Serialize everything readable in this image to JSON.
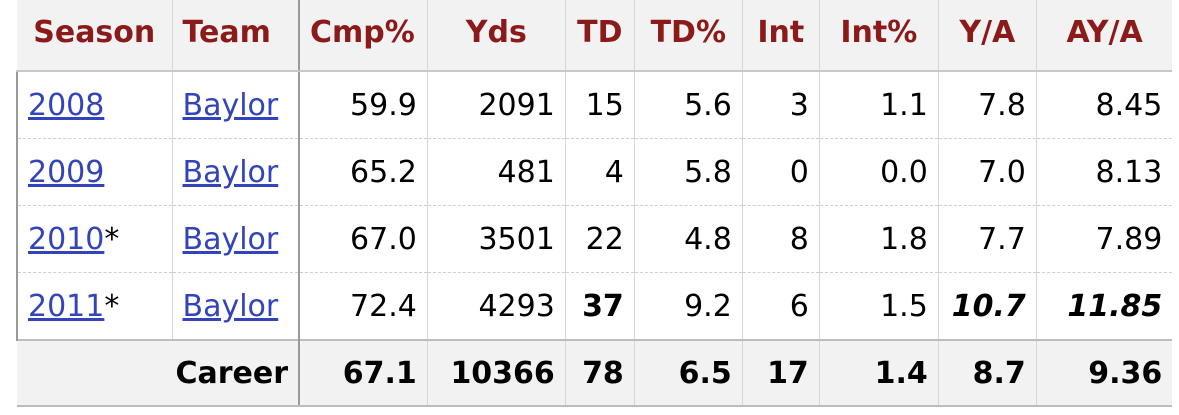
{
  "columns": [
    "Season",
    "Team",
    "Cmp%",
    "Yds",
    "TD",
    "TD%",
    "Int",
    "Int%",
    "Y/A",
    "AY/A"
  ],
  "rows": [
    {
      "season": "2008",
      "marker": "",
      "team": "Baylor",
      "cmp_pct": "59.9",
      "yds": "2091",
      "td": "15",
      "td_pct": "5.6",
      "int": "3",
      "int_pct": "1.1",
      "ya": "7.8",
      "aya": "8.45"
    },
    {
      "season": "2009",
      "marker": "",
      "team": "Baylor",
      "cmp_pct": "65.2",
      "yds": "481",
      "td": "4",
      "td_pct": "5.8",
      "int": "0",
      "int_pct": "0.0",
      "ya": "7.0",
      "aya": "8.13"
    },
    {
      "season": "2010",
      "marker": "*",
      "team": "Baylor",
      "cmp_pct": "67.0",
      "yds": "3501",
      "td": "22",
      "td_pct": "4.8",
      "int": "8",
      "int_pct": "1.8",
      "ya": "7.7",
      "aya": "7.89"
    },
    {
      "season": "2011",
      "marker": "*",
      "team": "Baylor",
      "cmp_pct": "72.4",
      "yds": "4293",
      "td": "37",
      "td_pct": "9.2",
      "int": "6",
      "int_pct": "1.5",
      "ya": "10.7",
      "aya": "11.85"
    }
  ],
  "career": {
    "label": "Career",
    "cmp_pct": "67.1",
    "yds": "10366",
    "td": "78",
    "td_pct": "6.5",
    "int": "17",
    "int_pct": "1.4",
    "ya": "8.7",
    "aya": "9.36"
  },
  "colors": {
    "header_text": "#8b1a1a",
    "link": "#3344bb",
    "header_bg": "#f2f2f2"
  }
}
